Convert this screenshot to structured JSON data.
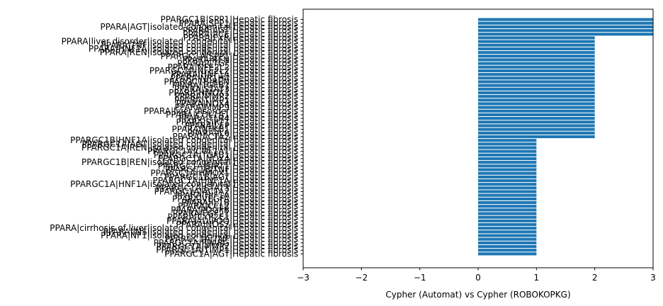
{
  "chart_data": {
    "type": "bar",
    "orientation": "horizontal",
    "xlabel": "Cypher (Automat) vs Cypher (ROBOKOPKG)",
    "ylabel": "",
    "xlim": [
      -3,
      3
    ],
    "xticks": [
      "−3",
      "−2",
      "−1",
      "0",
      "1",
      "2",
      "3"
    ],
    "bar_color": "#1f77b4",
    "grid": false,
    "categories": [
      "PPARGC1B|SPP1|Hepatic fibrosis",
      "PPARA|SPP1|Hepatic fibrosis",
      "PPARA|AGT|isolated congenital hepatic fibrosis",
      "PPARA|AGT|Hepatic fibrosis",
      "PPARA|ACE|Hepatic fibrosis",
      "PPARA|FXR|Hepatic fibrosis",
      "PPARA|liver disorder|isolated congenital hepatic fibrosis",
      "PPARA|TNF|isolated congenital hepatic fibrosis",
      "PPARA|HNF1A|isolated congenital hepatic fibrosis",
      "PPARA|REN|isolated congenital hepatic fibrosis",
      "PPARGC1A|SPP1|Hepatic fibrosis",
      "PPARA|REN|Hepatic fibrosis",
      "PPARA|CTGF|Hepatic fibrosis",
      "PPARA|NFE2L2|Hepatic fibrosis",
      "PPARGC1A|NFE2L2|Hepatic fibrosis",
      "PPARA|HNF1A|Hepatic fibrosis",
      "PPARA|NR1H4|Hepatic fibrosis",
      "PPARGC1B|REN|Hepatic fibrosis",
      "PPARA|TGFB1|Hepatic fibrosis",
      "PPARA|STAT3|Hepatic fibrosis",
      "PPARA|HMOX1|Hepatic fibrosis",
      "PPARA|MMP2|Hepatic fibrosis",
      "PPARA|TIMP1|Hepatic fibrosis",
      "PPARA|NOX4|Hepatic fibrosis",
      "PPARA|MMP9|Hepatic fibrosis",
      "PPARA|liver disorder|Hepatic fibrosis",
      "PPARA|COL1A1|Hepatic fibrosis",
      "PPARA|TLR4|Hepatic fibrosis",
      "PPARA|SIRT1|Hepatic fibrosis",
      "PPARA|LEP|Hepatic fibrosis",
      "PPARA|NFKB1|Hepatic fibrosis",
      "PPARA|IL6|Hepatic fibrosis",
      "PPARA|ACTA2|Hepatic fibrosis",
      "PPARGC1B|HNF1A|isolated congenital hepatic fibrosis",
      "PPARGC1A|AGT|isolated congenital hepatic fibrosis",
      "PPARGC1A|REN|isolated congenital hepatic fibrosis",
      "PPARGC1A|COL1A1|Hepatic fibrosis",
      "PPARGC1A|TGFB1|Hepatic fibrosis",
      "PPARGC1A|NOX4|Hepatic fibrosis",
      "PPARGC1B|REN|isolated congenital hepatic fibrosis",
      "PPARGC1A|SIRT1|Hepatic fibrosis",
      "PPARGC1B|TNF|Hepatic fibrosis",
      "PPARGC1A|HMOX1|Hepatic fibrosis",
      "PPARGC1B|AGT|Hepatic fibrosis",
      "PPARGC1A|HNF1A|Hepatic fibrosis",
      "PPARGC1A|HNF1A|isolated congenital hepatic fibrosis",
      "PPARGC1A|STAT3|Hepatic fibrosis",
      "PPARGC1A|ACTA2|Hepatic fibrosis",
      "PPARA|HIF1A|Hepatic fibrosis",
      "PPARA|VEGFA|Hepatic fibrosis",
      "PPARA|IL1B|Hepatic fibrosis",
      "PPARA|CCL2|Hepatic fibrosis",
      "PPARA|PDGFB|Hepatic fibrosis",
      "PPARA|FGF21|Hepatic fibrosis",
      "PPARA|CYP2E1|Hepatic fibrosis",
      "PPARA|ADIPOQ|Hepatic fibrosis",
      "PPARA|NOS2|Hepatic fibrosis",
      "PPARA|cirrhosis of liver|isolated congenital hepatic fibrosis",
      "PPARA|INS|isolated congenital hepatic fibrosis",
      "PPARA|NF1|isolated congenital hepatic fibrosis",
      "PPARGC1A|TNF|Hepatic fibrosis",
      "PPARGC1A|PPARG|Hepatic fibrosis",
      "PPARGC1A|MMP2|Hepatic fibrosis",
      "PPARGC1A|TIMP1|Hepatic fibrosis",
      "PPARGC1A|AGT|Hepatic fibrosis"
    ],
    "values": [
      3,
      3,
      3,
      3,
      3,
      2,
      2,
      2,
      2,
      2,
      2,
      2,
      2,
      2,
      2,
      2,
      2,
      2,
      2,
      2,
      2,
      2,
      2,
      2,
      2,
      2,
      2,
      2,
      2,
      2,
      2,
      2,
      2,
      1,
      1,
      1,
      1,
      1,
      1,
      1,
      1,
      1,
      1,
      1,
      1,
      1,
      1,
      1,
      1,
      1,
      1,
      1,
      1,
      1,
      1,
      1,
      1,
      1,
      1,
      1,
      1,
      1,
      1,
      1,
      1
    ]
  }
}
